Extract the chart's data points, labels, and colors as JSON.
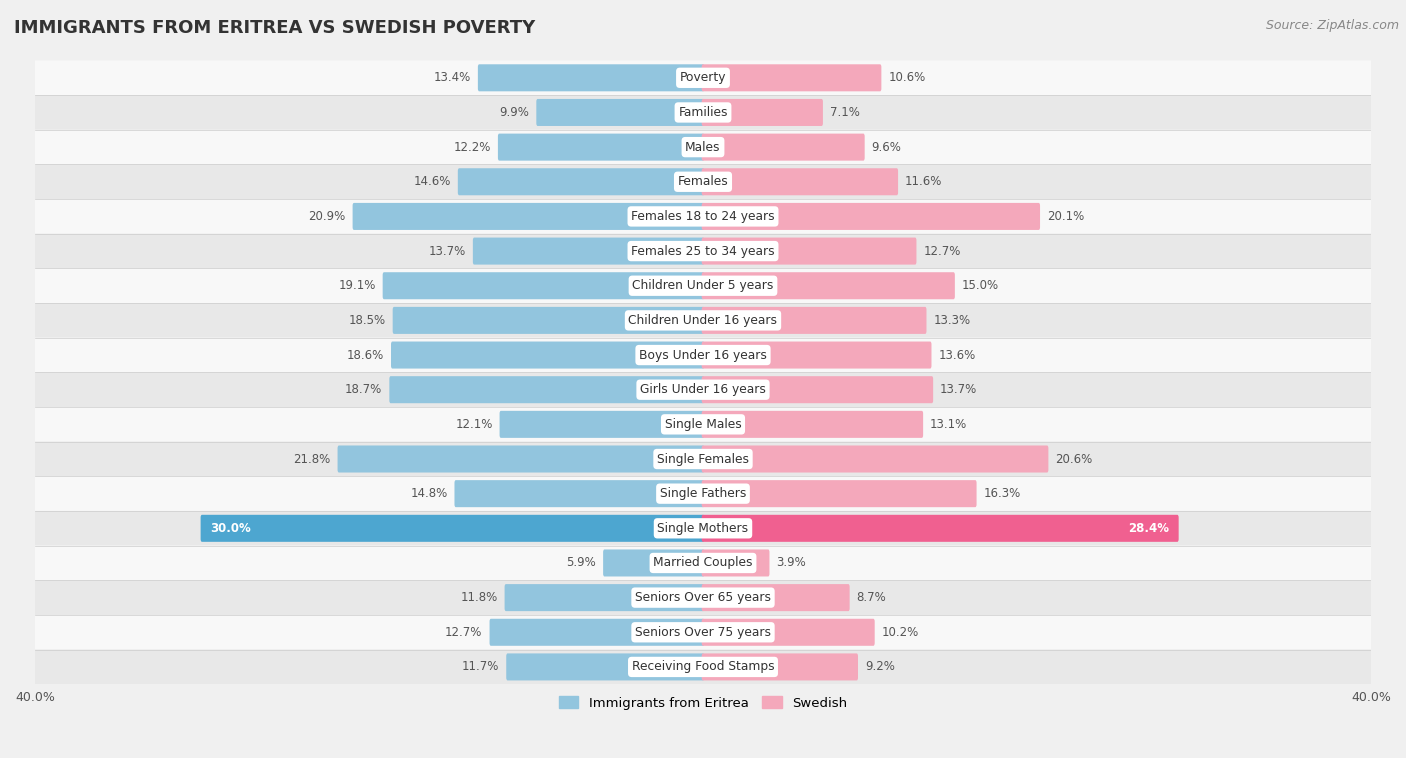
{
  "title": "IMMIGRANTS FROM ERITREA VS SWEDISH POVERTY",
  "source": "Source: ZipAtlas.com",
  "categories": [
    "Poverty",
    "Families",
    "Males",
    "Females",
    "Females 18 to 24 years",
    "Females 25 to 34 years",
    "Children Under 5 years",
    "Children Under 16 years",
    "Boys Under 16 years",
    "Girls Under 16 years",
    "Single Males",
    "Single Females",
    "Single Fathers",
    "Single Mothers",
    "Married Couples",
    "Seniors Over 65 years",
    "Seniors Over 75 years",
    "Receiving Food Stamps"
  ],
  "eritrea_values": [
    13.4,
    9.9,
    12.2,
    14.6,
    20.9,
    13.7,
    19.1,
    18.5,
    18.6,
    18.7,
    12.1,
    21.8,
    14.8,
    30.0,
    5.9,
    11.8,
    12.7,
    11.7
  ],
  "swedish_values": [
    10.6,
    7.1,
    9.6,
    11.6,
    20.1,
    12.7,
    15.0,
    13.3,
    13.6,
    13.7,
    13.1,
    20.6,
    16.3,
    28.4,
    3.9,
    8.7,
    10.2,
    9.2
  ],
  "eritrea_color": "#92c5de",
  "swedish_color": "#f4a8bb",
  "eritrea_highlight_color": "#4da6d0",
  "swedish_highlight_color": "#f06090",
  "background_color": "#f0f0f0",
  "row_odd_color": "#f8f8f8",
  "row_even_color": "#e8e8e8",
  "axis_max": 40.0,
  "legend_eritrea": "Immigrants from Eritrea",
  "legend_swedish": "Swedish",
  "bar_height": 0.62,
  "label_fontsize": 8.5,
  "category_fontsize": 8.8,
  "title_fontsize": 13,
  "source_fontsize": 9,
  "highlight_rows": [
    13
  ]
}
